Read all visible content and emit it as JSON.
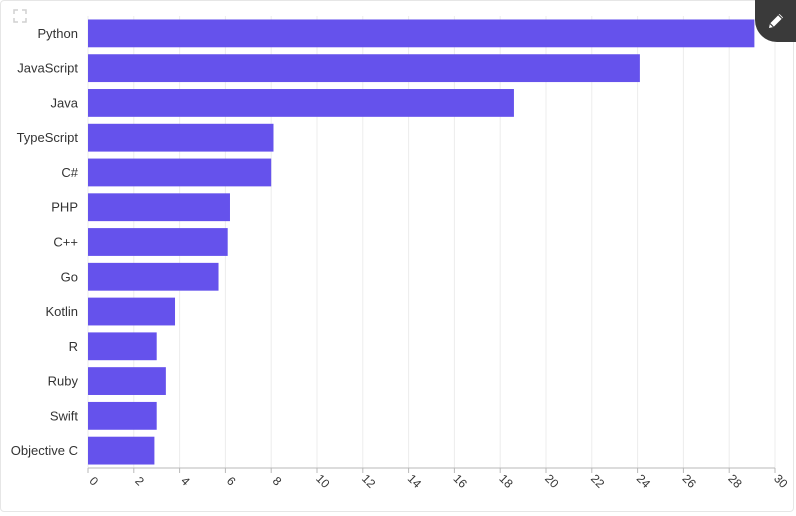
{
  "colors": {
    "bar": "#6552ec",
    "grid": "#ececec",
    "axis": "#b8b8b8",
    "edit_button": "#3a3a3a"
  },
  "icons": {
    "expand": "expand-icon",
    "edit": "pencil-icon"
  },
  "chart_data": {
    "type": "bar",
    "orientation": "horizontal",
    "title": "",
    "xlabel": "",
    "ylabel": "",
    "categories": [
      "Python",
      "JavaScript",
      "Java",
      "TypeScript",
      "C#",
      "PHP",
      "C++",
      "Go",
      "Kotlin",
      "R",
      "Ruby",
      "Swift",
      "Objective C"
    ],
    "values": [
      29.1,
      24.1,
      18.6,
      8.1,
      8.0,
      6.2,
      6.1,
      5.7,
      3.8,
      3.0,
      3.4,
      3.0,
      2.9
    ],
    "xlim": [
      0,
      30
    ],
    "xticks": [
      0,
      2,
      4,
      6,
      8,
      10,
      12,
      14,
      16,
      18,
      20,
      22,
      24,
      26,
      28,
      30
    ],
    "grid": "vertical",
    "legend": "none"
  }
}
